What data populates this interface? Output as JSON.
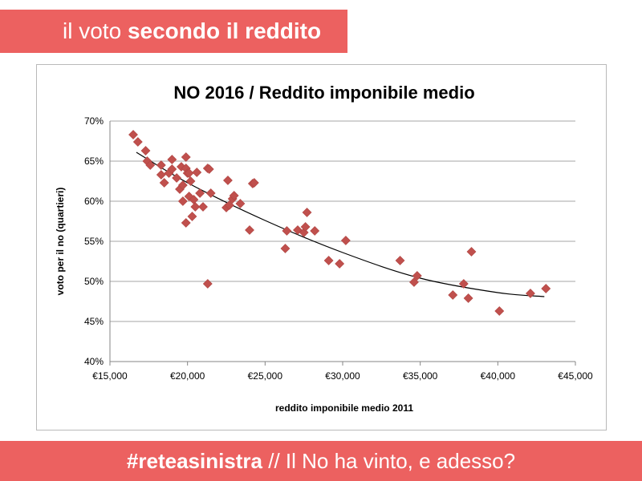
{
  "header": {
    "title_light": "il voto ",
    "title_bold": "secondo il reddito"
  },
  "footer": {
    "hashtag": "#reteasinistra",
    "subtitle": " // Il No ha vinto, e adesso?"
  },
  "colors": {
    "banner": "#ec6160",
    "marker": "#c0504d",
    "trendline": "#000000",
    "grid": "#a6a6a6"
  },
  "chart_data": {
    "type": "scatter",
    "title": "NO 2016 / Reddito imponibile medio",
    "xlabel": "reddito imponibile medio 2011",
    "ylabel": "voto per il no (quartieri)",
    "xlim": [
      15000,
      45000
    ],
    "ylim": [
      40,
      70
    ],
    "x_ticks": [
      15000,
      20000,
      25000,
      30000,
      35000,
      40000,
      45000
    ],
    "x_tick_labels": [
      "€15,000",
      "€20,000",
      "€25,000",
      "€30,000",
      "€35,000",
      "€40,000",
      "€45,000"
    ],
    "y_ticks": [
      40,
      45,
      50,
      55,
      60,
      65,
      70
    ],
    "y_tick_labels": [
      "40%",
      "45%",
      "50%",
      "55%",
      "60%",
      "65%",
      "70%"
    ],
    "grid": "horizontal",
    "legend": "none",
    "trendline": {
      "type": "polynomial",
      "points": [
        [
          16700,
          66.1
        ],
        [
          20000,
          62.3
        ],
        [
          25000,
          57.6
        ],
        [
          30000,
          53.6
        ],
        [
          35000,
          50.4
        ],
        [
          40000,
          48.6
        ],
        [
          43000,
          48.1
        ]
      ]
    },
    "points": [
      [
        16500,
        68.3
      ],
      [
        16800,
        67.4
      ],
      [
        17300,
        66.3
      ],
      [
        17400,
        65.0
      ],
      [
        17600,
        64.5
      ],
      [
        18300,
        64.5
      ],
      [
        18300,
        63.3
      ],
      [
        18500,
        62.3
      ],
      [
        18800,
        63.5
      ],
      [
        19000,
        64.0
      ],
      [
        19000,
        65.2
      ],
      [
        19300,
        62.9
      ],
      [
        19500,
        61.5
      ],
      [
        19600,
        64.3
      ],
      [
        19700,
        62.0
      ],
      [
        19700,
        60.0
      ],
      [
        19900,
        65.5
      ],
      [
        19900,
        64.1
      ],
      [
        20000,
        63.5
      ],
      [
        19900,
        57.3
      ],
      [
        20100,
        60.6
      ],
      [
        20100,
        63.5
      ],
      [
        20200,
        62.5
      ],
      [
        20300,
        58.1
      ],
      [
        20400,
        60.2
      ],
      [
        20500,
        59.3
      ],
      [
        20600,
        63.6
      ],
      [
        20800,
        61.0
      ],
      [
        21000,
        59.3
      ],
      [
        21300,
        64.1
      ],
      [
        21400,
        64.0
      ],
      [
        21500,
        61.0
      ],
      [
        21300,
        49.7
      ],
      [
        22500,
        59.2
      ],
      [
        22600,
        62.6
      ],
      [
        22700,
        59.5
      ],
      [
        22900,
        60.3
      ],
      [
        23000,
        60.7
      ],
      [
        23400,
        59.7
      ],
      [
        24000,
        56.4
      ],
      [
        24200,
        62.2
      ],
      [
        24300,
        62.3
      ],
      [
        26300,
        54.1
      ],
      [
        26400,
        56.3
      ],
      [
        27100,
        56.4
      ],
      [
        27500,
        56.1
      ],
      [
        27600,
        56.8
      ],
      [
        27700,
        58.6
      ],
      [
        28200,
        56.3
      ],
      [
        29100,
        52.6
      ],
      [
        29800,
        52.2
      ],
      [
        30200,
        55.1
      ],
      [
        33700,
        52.6
      ],
      [
        34600,
        49.9
      ],
      [
        34800,
        50.7
      ],
      [
        37100,
        48.3
      ],
      [
        37800,
        49.7
      ],
      [
        38100,
        47.9
      ],
      [
        38300,
        53.7
      ],
      [
        40100,
        46.3
      ],
      [
        42100,
        48.5
      ],
      [
        43100,
        49.1
      ]
    ]
  }
}
